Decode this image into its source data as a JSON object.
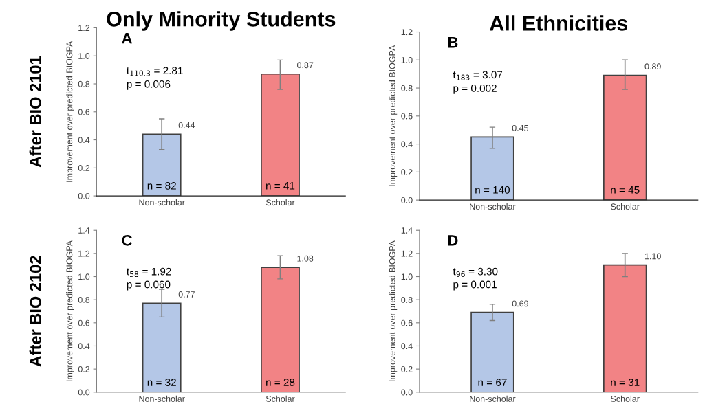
{
  "chart_data": [
    {
      "type": "bar",
      "title": "Only Minority Students",
      "ylabel": "Improvement over predicted BIOGPA",
      "categories": [
        "Non-scholar",
        "Scholar"
      ],
      "values": [
        0.44,
        0.87
      ],
      "colors": [
        "#b4c7e7",
        "#f28385"
      ],
      "errors": [
        [
          0.33,
          0.55
        ],
        [
          0.76,
          0.97
        ]
      ],
      "data_labels": true,
      "ylim": [
        0,
        1.2
      ],
      "yticks": [
        {
          "value": 0,
          "label": "0.0"
        },
        {
          "value": 0.2,
          "label": "0.2"
        },
        {
          "value": 0.4,
          "label": "0.4"
        },
        {
          "value": 0.6,
          "label": "0.6"
        },
        {
          "value": 0.8,
          "label": "0.8"
        },
        {
          "value": 1.0,
          "label": "1.0"
        },
        {
          "value": 1.2,
          "label": "1.2"
        }
      ],
      "grid": false,
      "legend": false,
      "annotations": [
        "A",
        "t$_{110.3}$ = 2.81",
        "p = 0.006",
        "n = 82",
        "n = 41",
        "After BIO 2101"
      ]
    },
    {
      "type": "bar",
      "title": "All Ethnicities",
      "ylabel": "Improvement over predicted BIOGPA",
      "categories": [
        "Non-scholar",
        "Scholar"
      ],
      "values": [
        0.45,
        0.89
      ],
      "colors": [
        "#b4c7e7",
        "#f28385"
      ],
      "errors": [
        [
          0.37,
          0.52
        ],
        [
          0.79,
          1.0
        ]
      ],
      "data_labels": true,
      "ylim": [
        0,
        1.2
      ],
      "yticks": [
        {
          "value": 0,
          "label": "0.0"
        },
        {
          "value": 0.2,
          "label": "0.2"
        },
        {
          "value": 0.4,
          "label": "0.4"
        },
        {
          "value": 0.6,
          "label": "0.6"
        },
        {
          "value": 0.8,
          "label": "0.8"
        },
        {
          "value": 1.0,
          "label": "1.0"
        },
        {
          "value": 1.2,
          "label": "1.2"
        }
      ],
      "grid": false,
      "legend": false,
      "annotations": [
        "B",
        "t$_{183}$ = 3.07",
        "p = 0.002",
        "n = 140",
        "n = 45"
      ]
    },
    {
      "type": "bar",
      "ylabel": "Improvement over predicted BIOGPA",
      "categories": [
        "Non-scholar",
        "Scholar"
      ],
      "values": [
        0.77,
        1.08
      ],
      "colors": [
        "#b4c7e7",
        "#f28385"
      ],
      "errors": [
        [
          0.65,
          0.89
        ],
        [
          0.98,
          1.18
        ]
      ],
      "data_labels": true,
      "ylim": [
        0,
        1.4
      ],
      "yticks": [
        {
          "value": 0,
          "label": "0.0"
        },
        {
          "value": 0.2,
          "label": "0.2"
        },
        {
          "value": 0.4,
          "label": "0.4"
        },
        {
          "value": 0.6,
          "label": "0.6"
        },
        {
          "value": 0.8,
          "label": "0.8"
        },
        {
          "value": 1.0,
          "label": "1.0"
        },
        {
          "value": 1.2,
          "label": "1.2"
        },
        {
          "value": 1.4,
          "label": "1.4"
        }
      ],
      "grid": false,
      "legend": false,
      "annotations": [
        "C",
        "t$_{58}$ = 1.92",
        "p = 0.060",
        "n = 32",
        "n = 28",
        "After BIO 2102"
      ]
    },
    {
      "type": "bar",
      "ylabel": "Improvement over predicted BIOGPA",
      "categories": [
        "Non-scholar",
        "Scholar"
      ],
      "values": [
        0.69,
        1.1
      ],
      "colors": [
        "#b4c7e7",
        "#f28385"
      ],
      "errors": [
        [
          0.62,
          0.76
        ],
        [
          1.0,
          1.2
        ]
      ],
      "data_labels": true,
      "value_labels": [
        "0.69",
        "1.10"
      ],
      "ylim": [
        0,
        1.4
      ],
      "yticks": [
        {
          "value": 0,
          "label": "0.0"
        },
        {
          "value": 0.2,
          "label": "0.2"
        },
        {
          "value": 0.4,
          "label": "0.4"
        },
        {
          "value": 0.6,
          "label": "0.6"
        },
        {
          "value": 0.8,
          "label": "0.8"
        },
        {
          "value": 1.0,
          "label": "1.0"
        },
        {
          "value": 1.2,
          "label": "1.2"
        },
        {
          "value": 1.4,
          "label": "1.4"
        }
      ],
      "grid": false,
      "legend": false,
      "annotations": [
        "D",
        "t$_{96}$ = 3.30",
        "p = 0.001",
        "n = 67",
        "n = 31"
      ]
    }
  ]
}
